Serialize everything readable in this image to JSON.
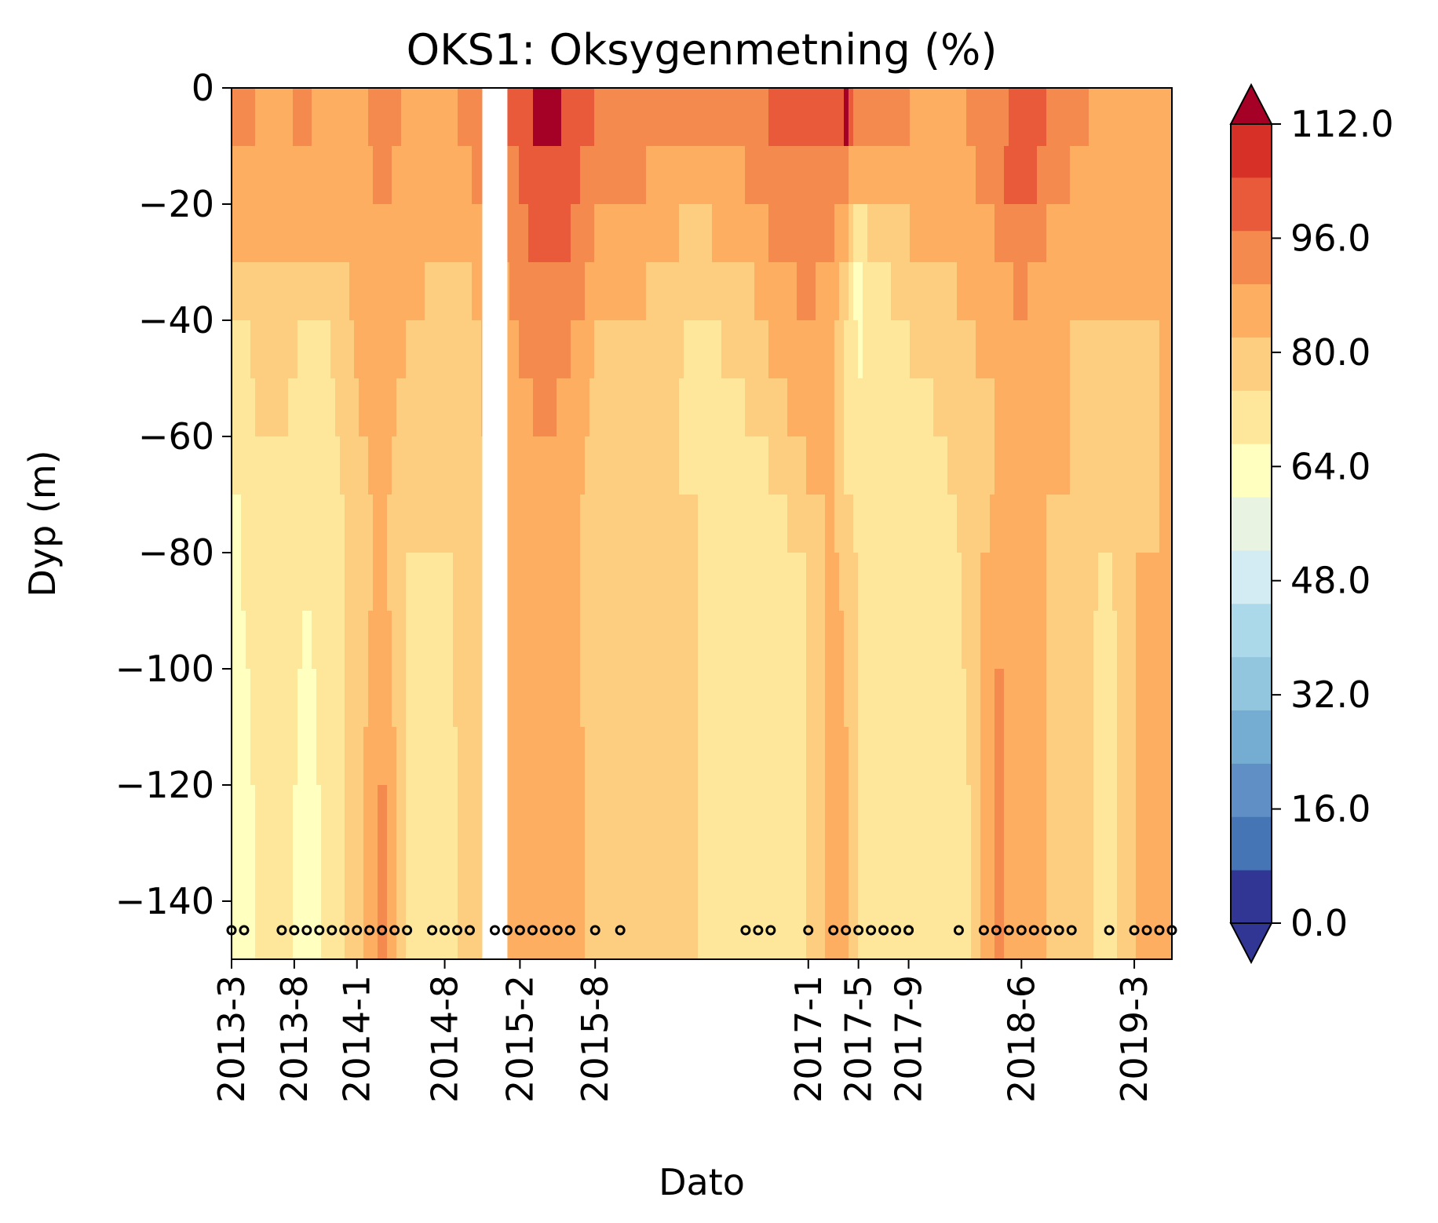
{
  "chart_data": {
    "type": "heatmap",
    "title": "OKS1: Oksygenmetning (%)",
    "xlabel": "Dato",
    "ylabel": "Dyp (m)",
    "x_tick_labels": [
      "2013-3",
      "2013-8",
      "2014-1",
      "2014-8",
      "2015-2",
      "2015-8",
      "2017-1",
      "2017-5",
      "2017-9",
      "2018-6",
      "2019-3"
    ],
    "x_tick_positions": [
      "2013-03",
      "2013-08",
      "2014-01",
      "2014-08",
      "2015-02",
      "2015-08",
      "2017-01",
      "2017-05",
      "2017-09",
      "2018-06",
      "2019-03"
    ],
    "x_range": [
      "2013-03",
      "2019-06"
    ],
    "y_ticks": [
      0,
      -20,
      -40,
      -60,
      -80,
      -100,
      -120,
      -140
    ],
    "y_tick_labels": [
      "0",
      "−20",
      "−40",
      "−60",
      "−80",
      "−100",
      "−120",
      "−140"
    ],
    "ylim": [
      -150,
      0
    ],
    "colorbar": {
      "levels": [
        0,
        8,
        16,
        24,
        32,
        40,
        48,
        56,
        64,
        72,
        80,
        88,
        96,
        104,
        112
      ],
      "tick_labels": [
        "0.0",
        "16.0",
        "32.0",
        "48.0",
        "64.0",
        "80.0",
        "96.0",
        "112.0"
      ],
      "tick_values": [
        0,
        16,
        32,
        48,
        64,
        80,
        96,
        112
      ],
      "colors": [
        "#313695",
        "#4575b4",
        "#5f8fc4",
        "#74add1",
        "#92c5de",
        "#abd9e9",
        "#d3ebf2",
        "#e8f4e1",
        "#ffffbf",
        "#fee79b",
        "#fdce7f",
        "#fdae61",
        "#f48a4e",
        "#e85a3a",
        "#d73027"
      ],
      "extend_low_color": "#313695",
      "extend_high_color": "#a50026"
    },
    "sampling_depth": -145,
    "sample_dates": [
      "2013-03",
      "2013-04",
      "2013-07",
      "2013-08",
      "2013-09",
      "2013-10",
      "2013-11",
      "2013-12",
      "2014-01",
      "2014-02",
      "2014-03",
      "2014-04",
      "2014-05",
      "2014-07",
      "2014-08",
      "2014-09",
      "2014-10",
      "2014-12",
      "2015-01",
      "2015-02",
      "2015-03",
      "2015-04",
      "2015-05",
      "2015-06",
      "2015-08",
      "2015-10",
      "2016-08",
      "2016-09",
      "2016-10",
      "2017-01",
      "2017-03",
      "2017-04",
      "2017-05",
      "2017-06",
      "2017-07",
      "2017-08",
      "2017-09",
      "2017-09",
      "2018-01",
      "2018-03",
      "2018-04",
      "2018-05",
      "2018-06",
      "2018-07",
      "2018-08",
      "2018-09",
      "2018-10",
      "2019-01",
      "2019-03",
      "2019-04",
      "2019-05",
      "2019-06"
    ],
    "no_data_gap": [
      "2014-11",
      "2015-01"
    ],
    "profiles": [
      {
        "date": "2013-03",
        "values": [
          97,
          94,
          88,
          80,
          76,
          74,
          72,
          70,
          70,
          70,
          70,
          70,
          70,
          70,
          70,
          70
        ]
      },
      {
        "date": "2013-05",
        "values": [
          96,
          93,
          88,
          86,
          82,
          80,
          78,
          76,
          75,
          74,
          73,
          73,
          72,
          72,
          72,
          72
        ]
      },
      {
        "date": "2013-07",
        "values": [
          95,
          92,
          88,
          85,
          84,
          82,
          80,
          78,
          78,
          77,
          76,
          76,
          75,
          75,
          75,
          75
        ]
      },
      {
        "date": "2013-09",
        "values": [
          97,
          95,
          90,
          82,
          78,
          75,
          74,
          73,
          72,
          71,
          70,
          69,
          68,
          68,
          68,
          68
        ]
      },
      {
        "date": "2013-11",
        "values": [
          91,
          90,
          88,
          84,
          80,
          78,
          76,
          76,
          76,
          76,
          76,
          76,
          75,
          75,
          75,
          75
        ]
      },
      {
        "date": "2014-01",
        "values": [
          92,
          91,
          90,
          90,
          89,
          88,
          86,
          84,
          84,
          84,
          84,
          84,
          84,
          84,
          84,
          84
        ]
      },
      {
        "date": "2014-03",
        "values": [
          100,
          98,
          95,
          94,
          94,
          92,
          90,
          90,
          90,
          92,
          94,
          96,
          98,
          100,
          100,
          100
        ]
      },
      {
        "date": "2014-05",
        "values": [
          95,
          93,
          92,
          90,
          88,
          86,
          84,
          82,
          80,
          80,
          80,
          80,
          80,
          80,
          80,
          80
        ]
      },
      {
        "date": "2014-08",
        "values": [
          92,
          90,
          88,
          86,
          84,
          82,
          80,
          80,
          78,
          76,
          76,
          75,
          75,
          75,
          75,
          75
        ]
      },
      {
        "date": "2014-10",
        "values": [
          100,
          96,
          90,
          88,
          86,
          86,
          86,
          86,
          86,
          86,
          86,
          86,
          86,
          86,
          86,
          86
        ]
      },
      {
        "date": "2015-02",
        "values": [
          106,
          104,
          102,
          98,
          96,
          94,
          92,
          90,
          90,
          90,
          90,
          90,
          90,
          90,
          90,
          90
        ]
      },
      {
        "date": "2015-04",
        "values": [
          116,
          112,
          108,
          104,
          100,
          98,
          96,
          96,
          96,
          94,
          92,
          90,
          90,
          90,
          90,
          90
        ]
      },
      {
        "date": "2015-06",
        "values": [
          110,
          106,
          104,
          100,
          96,
          94,
          92,
          90,
          90,
          90,
          90,
          92,
          94,
          96,
          96,
          96
        ]
      },
      {
        "date": "2015-08",
        "values": [
          104,
          100,
          96,
          92,
          88,
          86,
          84,
          84,
          84,
          84,
          84,
          84,
          84,
          84,
          84,
          84
        ]
      },
      {
        "date": "2015-12",
        "values": [
          100,
          96,
          92,
          88,
          86,
          84,
          84,
          84,
          84,
          84,
          84,
          84,
          84,
          84,
          84,
          84
        ]
      },
      {
        "date": "2016-04",
        "values": [
          98,
          94,
          86,
          80,
          78,
          78,
          78,
          80,
          80,
          80,
          80,
          80,
          80,
          80,
          80,
          80
        ]
      },
      {
        "date": "2016-08",
        "values": [
          98,
          96,
          92,
          86,
          82,
          80,
          78,
          76,
          76,
          76,
          76,
          76,
          76,
          76,
          76,
          76
        ]
      },
      {
        "date": "2016-10",
        "values": [
          104,
          100,
          96,
          92,
          88,
          84,
          80,
          76,
          76,
          76,
          76,
          76,
          76,
          76,
          76,
          76
        ]
      },
      {
        "date": "2017-01",
        "values": [
          104,
          102,
          100,
          98,
          94,
          92,
          88,
          84,
          80,
          80,
          80,
          80,
          80,
          80,
          80,
          80
        ]
      },
      {
        "date": "2017-03",
        "values": [
          104,
          100,
          96,
          92,
          90,
          88,
          88,
          90,
          92,
          92,
          92,
          92,
          92,
          92,
          92,
          92
        ]
      },
      {
        "date": "2017-04",
        "values": [
          114,
          98,
          90,
          82,
          80,
          80,
          80,
          82,
          84,
          86,
          88,
          90,
          92,
          92,
          92,
          92
        ]
      },
      {
        "date": "2017-05",
        "values": [
          100,
          88,
          72,
          68,
          70,
          74,
          76,
          78,
          80,
          80,
          80,
          80,
          80,
          80,
          80,
          80
        ]
      },
      {
        "date": "2017-06",
        "values": [
          96,
          90,
          82,
          76,
          74,
          74,
          76,
          76,
          76,
          76,
          76,
          76,
          76,
          76,
          76,
          76
        ]
      },
      {
        "date": "2017-09",
        "values": [
          96,
          92,
          88,
          84,
          80,
          76,
          74,
          74,
          76,
          76,
          76,
          76,
          76,
          76,
          76,
          76
        ]
      },
      {
        "date": "2018-01",
        "values": [
          94,
          92,
          90,
          88,
          86,
          84,
          82,
          80,
          78,
          78,
          76,
          74,
          72,
          72,
          72,
          72
        ]
      },
      {
        "date": "2018-04",
        "values": [
          102,
          100,
          96,
          92,
          90,
          88,
          88,
          90,
          94,
          96,
          98,
          98,
          98,
          98,
          98,
          98
        ]
      },
      {
        "date": "2018-06",
        "values": [
          106,
          112,
          104,
          98,
          94,
          92,
          90,
          90,
          90,
          90,
          90,
          90,
          90,
          90,
          90,
          90
        ]
      },
      {
        "date": "2018-08",
        "values": [
          104,
          100,
          96,
          92,
          90,
          88,
          88,
          88,
          88,
          88,
          88,
          88,
          88,
          88,
          88,
          88
        ]
      },
      {
        "date": "2018-10",
        "values": [
          98,
          96,
          92,
          90,
          88,
          88,
          88,
          86,
          86,
          86,
          86,
          86,
          86,
          86,
          86,
          86
        ]
      },
      {
        "date": "2019-01",
        "values": [
          94,
          92,
          90,
          88,
          86,
          84,
          82,
          80,
          78,
          76,
          76,
          76,
          76,
          76,
          76,
          76
        ]
      },
      {
        "date": "2019-03",
        "values": [
          96,
          94,
          92,
          90,
          86,
          84,
          84,
          86,
          88,
          88,
          88,
          88,
          88,
          88,
          88,
          88
        ]
      },
      {
        "date": "2019-05",
        "values": [
          94,
          92,
          90,
          88,
          88,
          88,
          88,
          88,
          88,
          88,
          88,
          88,
          88,
          88,
          88,
          88
        ]
      }
    ],
    "profile_depths": [
      0,
      -10,
      -20,
      -30,
      -40,
      -50,
      -60,
      -70,
      -80,
      -90,
      -100,
      -110,
      -120,
      -130,
      -140,
      -150
    ]
  }
}
